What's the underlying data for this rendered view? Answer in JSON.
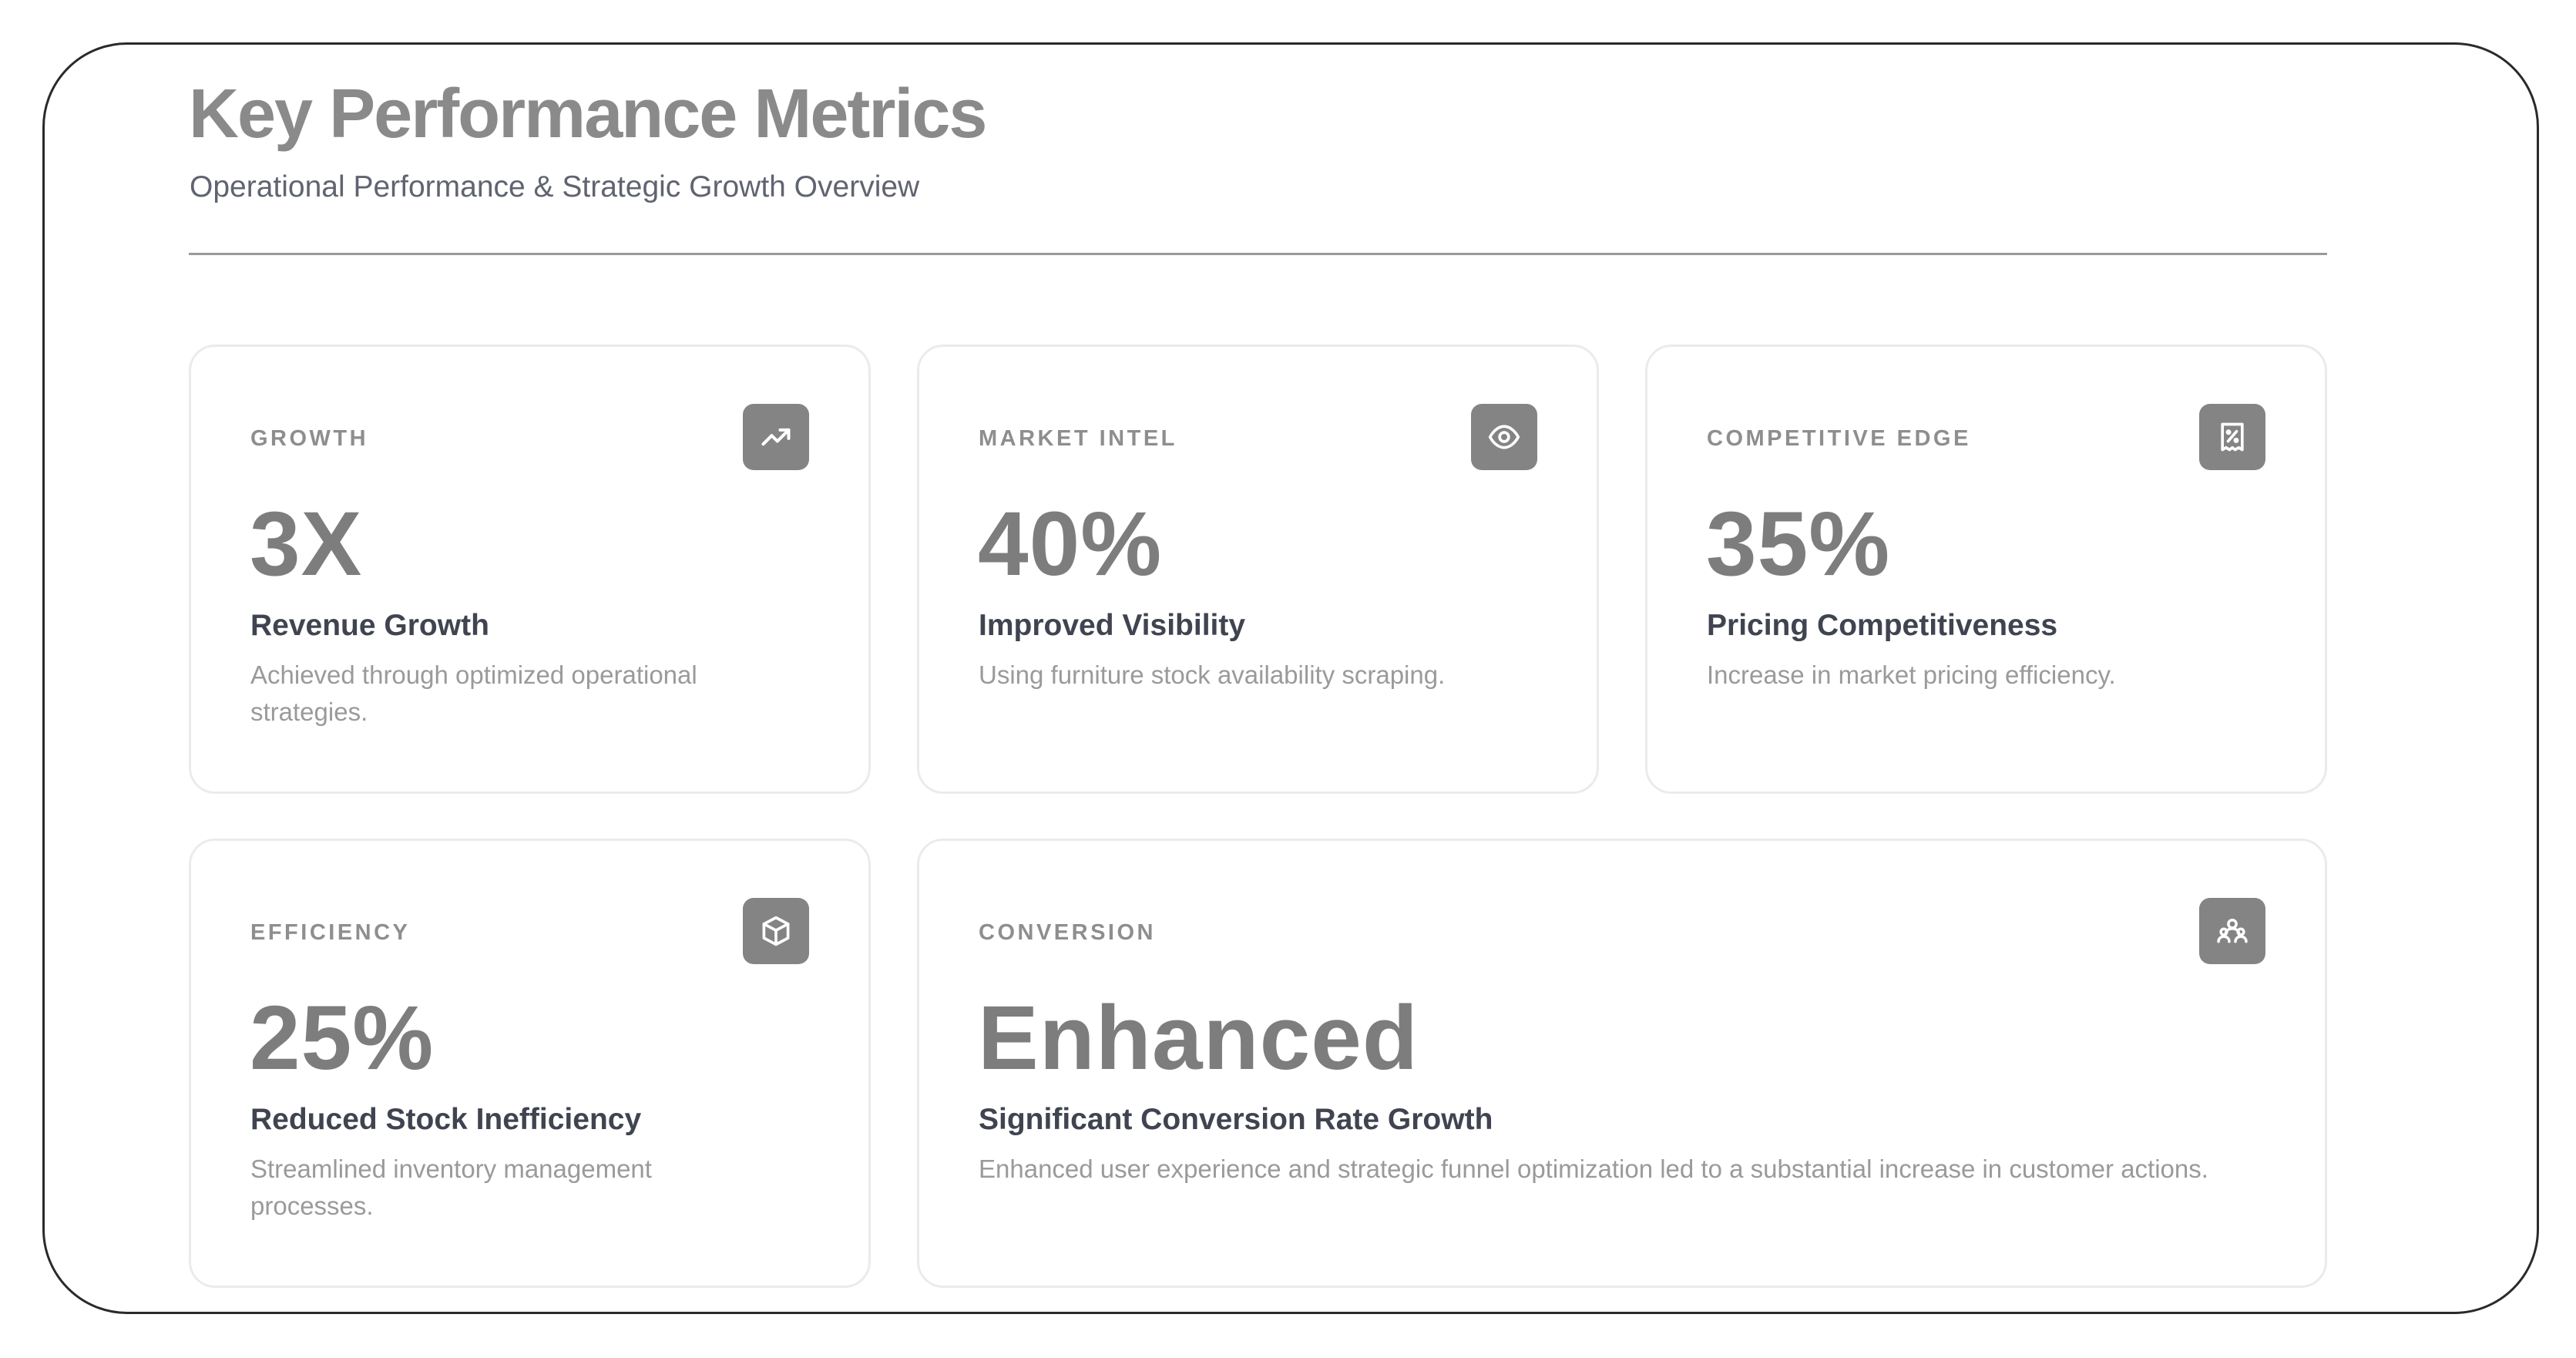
{
  "header": {
    "title": "Key Performance Metrics",
    "subtitle": "Operational Performance & Strategic Growth Overview"
  },
  "cards": [
    {
      "eyebrow": "GROWTH",
      "icon": "trending-up-icon",
      "value": "3X",
      "label": "Revenue Growth",
      "description": "Achieved through optimized operational strategies."
    },
    {
      "eyebrow": "MARKET INTEL",
      "icon": "eye-icon",
      "value": "40%",
      "label": "Improved Visibility",
      "description": "Using furniture stock availability scraping."
    },
    {
      "eyebrow": "COMPETITIVE EDGE",
      "icon": "receipt-percent-icon",
      "value": "35%",
      "label": "Pricing Competitiveness",
      "description": "Increase in market pricing efficiency."
    },
    {
      "eyebrow": "EFFICIENCY",
      "icon": "box-icon",
      "value": "25%",
      "label": "Reduced Stock Inefficiency",
      "description": "Streamlined inventory management processes."
    },
    {
      "eyebrow": "CONVERSION",
      "icon": "users-group-icon",
      "value": "Enhanced",
      "label": "Significant Conversion Rate Growth",
      "description": "Enhanced user experience and strategic funnel optimization led to a substantial increase in customer actions."
    }
  ],
  "colors": {
    "title": "#8a8a8a",
    "value": "#7d7d7d",
    "icon_bg": "#848484",
    "card_border": "#ebebeb",
    "frame_border": "#2a2a2a"
  }
}
